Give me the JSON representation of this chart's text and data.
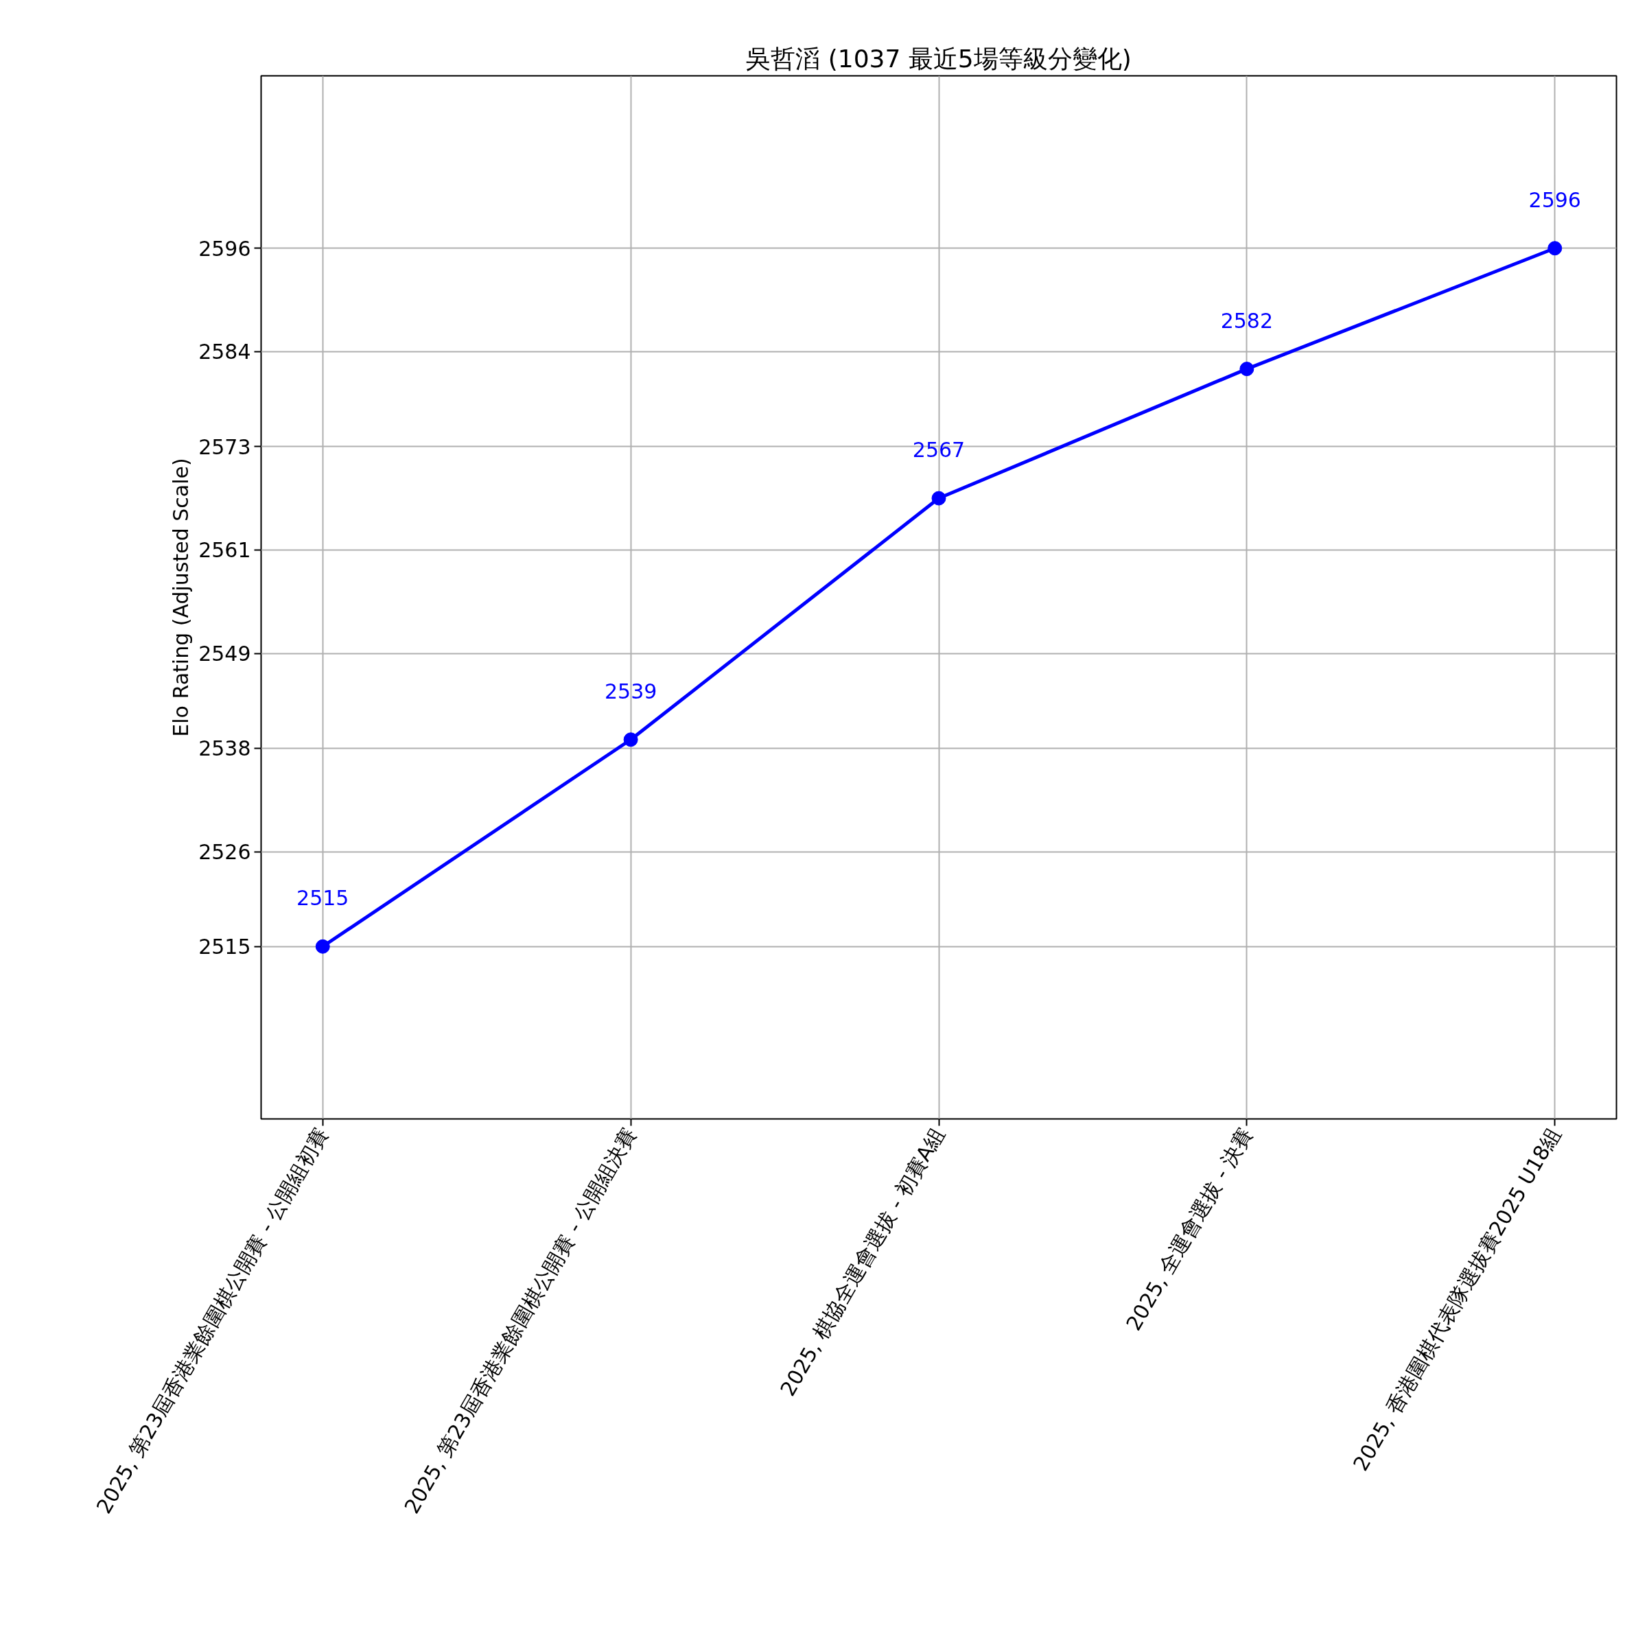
{
  "chart_data": {
    "type": "line",
    "title": "吳哲滔 (1037 最近5場等級分變化)",
    "ylabel": "Elo Rating (Adjusted Scale)",
    "categories": [
      "2025, 第23屆香港業餘圍棋公開賽 - 公開組初賽",
      "2025, 第23屆香港業餘圍棋公開賽 - 公開組決賽",
      "2025, 棋協全運會選拔 - 初賽A組",
      "2025, 全運會選拔 - 決賽",
      "2025, 香港圍棋代表隊選拔賽2025 U18組"
    ],
    "series": [
      {
        "color": "#0000ff",
        "values": [
          2515,
          2539,
          2567,
          2582,
          2596
        ]
      }
    ],
    "ylim": [
      2495,
      2616
    ],
    "yticks": [
      2515,
      2526,
      2538,
      2549,
      2561,
      2573,
      2584,
      2596
    ],
    "grid": true,
    "marker": "circle",
    "line_style": "solid",
    "data_labels": true
  }
}
